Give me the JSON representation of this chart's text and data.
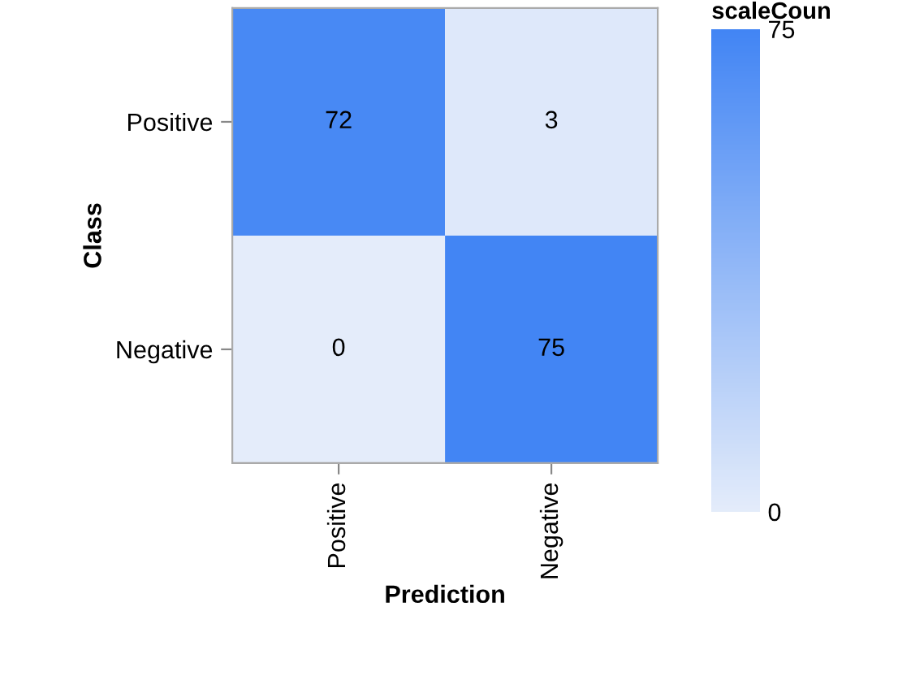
{
  "chart_data": {
    "type": "heatmap",
    "xlabel": "Prediction",
    "ylabel": "Class",
    "clabel": "scaleCoun",
    "categories": [
      "Positive",
      "Negative"
    ],
    "y_categories": [
      "Positive",
      "Negative"
    ],
    "cells": [
      [
        72,
        3
      ],
      [
        0,
        75
      ]
    ],
    "colors": [
      "#e4ecfa",
      "#4285f4"
    ],
    "clim": [
      0,
      75
    ],
    "cticks": [
      0,
      75
    ],
    "data_labels": true,
    "grid": false
  }
}
